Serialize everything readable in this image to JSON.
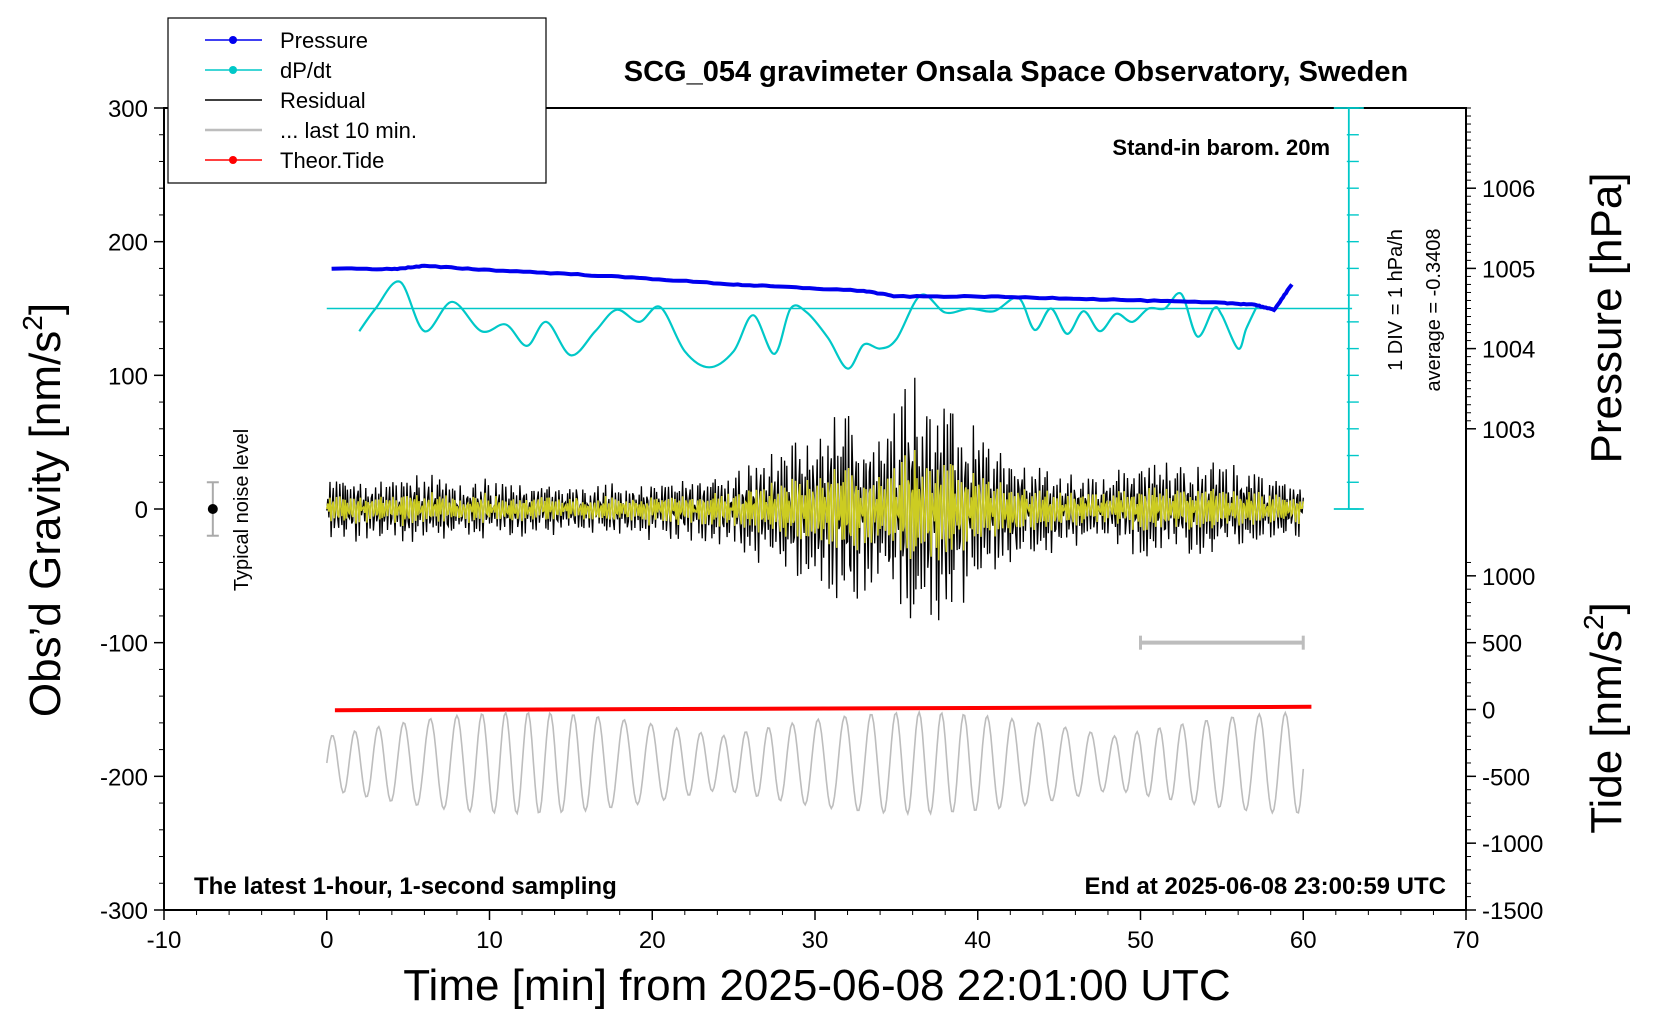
{
  "chart_data": {
    "type": "line",
    "title": "SCG_054 gravimeter Onsala Space Observatory, Sweden",
    "xlabel": "Time [min] from 2025-06-08 22:01:00 UTC",
    "ylabel_left": "Obs’d Gravity [nm/s²]",
    "ylabel_left_prefix": "Obs’d Gravity [nm/s",
    "ylabel_left_sup": "2",
    "ylabel_left_suffix": "]",
    "ylabel_right_top": "Pressure [hPa]",
    "ylabel_right_bottom": "Tide [nm/s²]",
    "ylabel_right_bottom_prefix": "Tide [nm/s",
    "ylabel_right_bottom_sup": "2",
    "ylabel_right_bottom_suffix": "]",
    "xlim": [
      -10,
      70
    ],
    "ylim": [
      -300,
      300
    ],
    "x_ticks": [
      -10,
      0,
      10,
      20,
      30,
      40,
      50,
      60,
      70
    ],
    "y_ticks": [
      -300,
      -200,
      -100,
      0,
      100,
      200,
      300
    ],
    "pressure_ticks": [
      {
        "label": "1003",
        "g": 60
      },
      {
        "label": "1004",
        "g": 120
      },
      {
        "label": "1005",
        "g": 180
      },
      {
        "label": "1006",
        "g": 240
      }
    ],
    "tide_ticks": [
      {
        "label": "1000",
        "g": -50
      },
      {
        "label": "500",
        "g": -100
      },
      {
        "label": "0",
        "g": -150
      },
      {
        "label": "-500",
        "g": -200
      },
      {
        "label": "-1000",
        "g": -250
      },
      {
        "label": "-1500",
        "g": -300
      }
    ],
    "legend": [
      {
        "label": "Pressure",
        "color": "#0000ee",
        "marker": true
      },
      {
        "label": "dP/dt",
        "color": "#00c8c8",
        "marker": true
      },
      {
        "label": "Residual",
        "color": "#000000",
        "marker": false
      },
      {
        "label": "... last 10 min.",
        "color": "#bdbdbd",
        "marker": false
      },
      {
        "label": "Theor.Tide",
        "color": "#ff0000",
        "marker": true
      }
    ],
    "legend_position": "top-left",
    "annotations": {
      "stand_in": "Stand-in barom. 20m",
      "div_label": "1 DIV = 1 hPa/h",
      "average_label": "average = -0.3408",
      "noise_label": "Typical noise level",
      "bottom_left": "The latest 1-hour, 1-second sampling",
      "bottom_right": "End at 2025-06-08 23:00:59 UTC"
    },
    "series": [
      {
        "name": "Pressure",
        "color": "#0000ee",
        "axis": "pressure",
        "x": [
          0.3,
          4,
          6,
          10,
          15,
          20,
          25,
          28,
          33,
          35,
          40,
          45,
          50,
          55,
          57,
          58.2,
          59.3
        ],
        "y": [
          1005.0,
          1004.99,
          1005.03,
          1004.98,
          1004.93,
          1004.87,
          1004.8,
          1004.77,
          1004.72,
          1004.65,
          1004.65,
          1004.63,
          1004.6,
          1004.57,
          1004.55,
          1004.48,
          1004.8
        ]
      },
      {
        "name": "dP/dt",
        "color": "#00c8c8",
        "axis": "gravity",
        "x": [
          2,
          3,
          4.5,
          6,
          7.7,
          9.5,
          11,
          12.3,
          13.5,
          15,
          16.5,
          17.8,
          19.2,
          20.5,
          22,
          23.5,
          25,
          26.2,
          27.5,
          28.5,
          29.5,
          30.8,
          32,
          33,
          34,
          35,
          36.5,
          38,
          39.5,
          41,
          42.5,
          43.5,
          44.5,
          45.5,
          46.5,
          47.5,
          48.5,
          49.5,
          50.5,
          51.5,
          52.5,
          53.5,
          54.5,
          55,
          56,
          56.5,
          57.2
        ],
        "y": [
          133,
          150,
          170,
          133,
          155,
          133,
          138,
          122,
          140,
          115,
          133,
          149,
          140,
          151,
          118,
          106,
          118,
          145,
          116,
          150,
          147,
          128,
          105,
          123,
          120,
          127,
          160,
          147,
          150,
          148,
          158,
          134,
          150,
          131,
          148,
          133,
          146,
          140,
          150,
          150,
          161,
          129,
          150,
          145,
          120,
          135,
          153
        ]
      },
      {
        "name": "Residual",
        "color": "#000000",
        "axis": "gravity",
        "x_range": [
          0,
          60
        ],
        "envelope": [
          [
            0,
            22
          ],
          [
            5,
            25
          ],
          [
            10,
            22
          ],
          [
            15,
            18
          ],
          [
            20,
            22
          ],
          [
            25,
            30
          ],
          [
            28,
            50
          ],
          [
            30,
            62
          ],
          [
            32,
            85
          ],
          [
            34,
            55
          ],
          [
            36,
            100
          ],
          [
            37,
            95
          ],
          [
            39,
            75
          ],
          [
            41,
            50
          ],
          [
            43,
            40
          ],
          [
            45,
            30
          ],
          [
            48,
            25
          ],
          [
            50,
            38
          ],
          [
            52,
            35
          ],
          [
            55,
            35
          ],
          [
            58,
            25
          ],
          [
            60,
            20
          ]
        ]
      },
      {
        "name": "Theor.Tide",
        "color": "#ff0000",
        "axis": "tide",
        "x": [
          0.5,
          60.5
        ],
        "y": [
          -5,
          20
        ]
      }
    ]
  }
}
